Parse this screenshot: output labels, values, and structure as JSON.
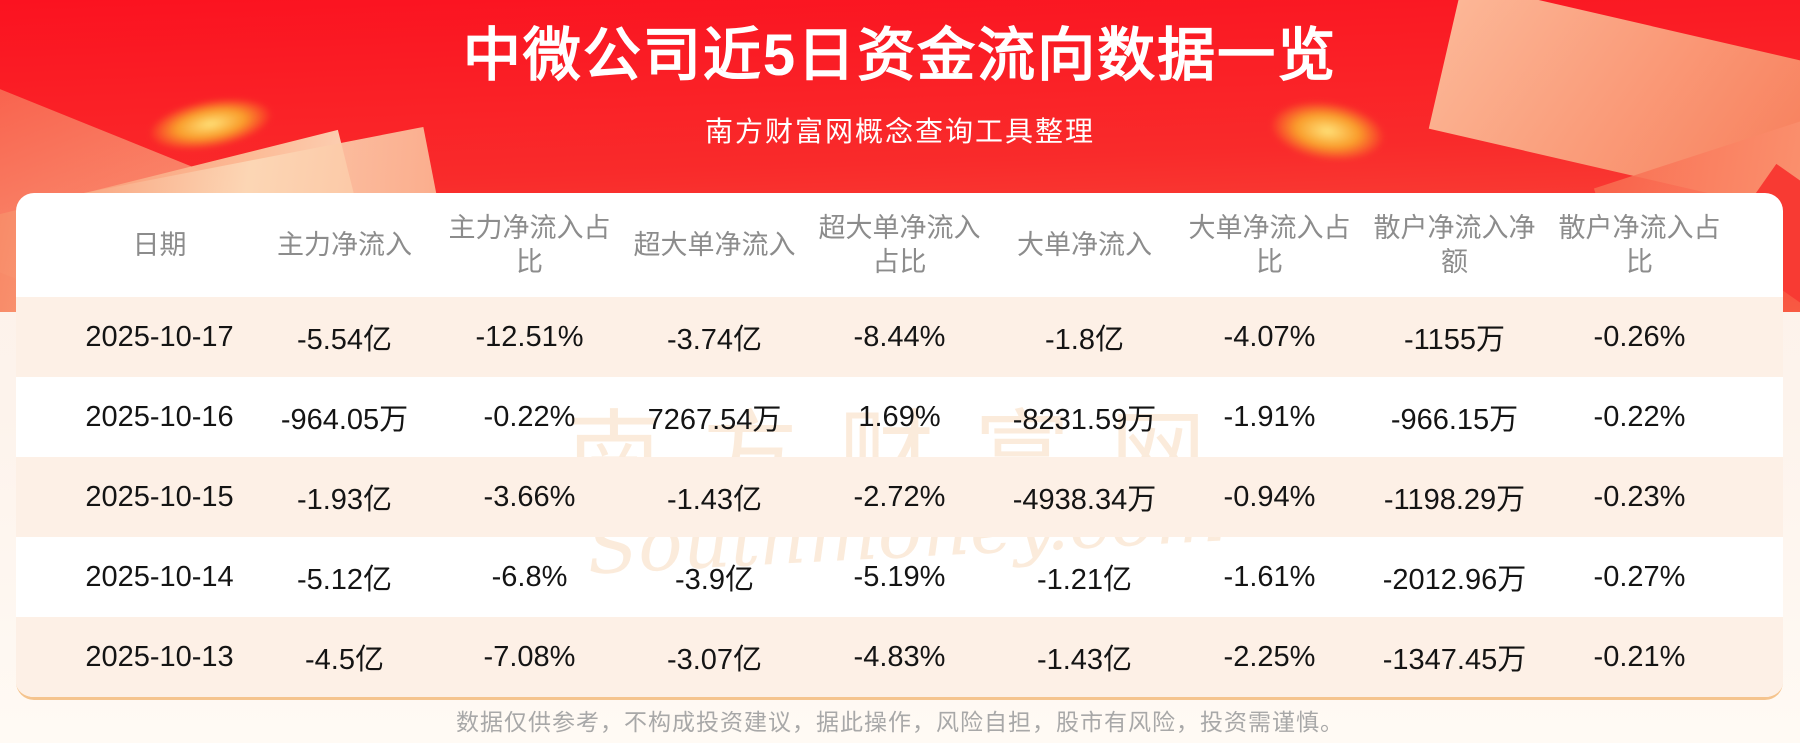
{
  "banner": {
    "title": "中微公司近5日资金流向数据一览",
    "subtitle": "南方财富网概念查询工具整理"
  },
  "watermark": {
    "cn": "南方财富网",
    "en": "Southmoney.com"
  },
  "footer": {
    "disclaimer": "数据仅供参考，不构成投资建议，据此操作，风险自担，股市有风险，投资需谨慎。"
  },
  "colors": {
    "banner_red": "#fa1a24",
    "row_stripe": "#fdf0e6",
    "card_bottom_line": "#f5c48e",
    "header_text": "#8c8c8c",
    "cell_text": "#141414",
    "gold_glow": "#f99d2b"
  },
  "chart_data": {
    "type": "table",
    "title": "中微公司近5日资金流向数据一览",
    "columns": [
      "日期",
      "主力净流入",
      "主力净流入占比",
      "超大单净流入",
      "超大单净流入占比",
      "大单净流入",
      "大单净流入占比",
      "散户净流入净额",
      "散户净流入占比"
    ],
    "rows": [
      [
        "2025-10-17",
        "-5.54亿",
        "-12.51%",
        "-3.74亿",
        "-8.44%",
        "-1.8亿",
        "-4.07%",
        "-1155万",
        "-0.26%"
      ],
      [
        "2025-10-16",
        "-964.05万",
        "-0.22%",
        "7267.54万",
        "1.69%",
        "-8231.59万",
        "-1.91%",
        "-966.15万",
        "-0.22%"
      ],
      [
        "2025-10-15",
        "-1.93亿",
        "-3.66%",
        "-1.43亿",
        "-2.72%",
        "-4938.34万",
        "-0.94%",
        "-1198.29万",
        "-0.23%"
      ],
      [
        "2025-10-14",
        "-5.12亿",
        "-6.8%",
        "-3.9亿",
        "-5.19%",
        "-1.21亿",
        "-1.61%",
        "-2012.96万",
        "-0.27%"
      ],
      [
        "2025-10-13",
        "-4.5亿",
        "-7.08%",
        "-3.07亿",
        "-4.83%",
        "-1.43亿",
        "-2.25%",
        "-1347.45万",
        "-0.21%"
      ]
    ]
  }
}
